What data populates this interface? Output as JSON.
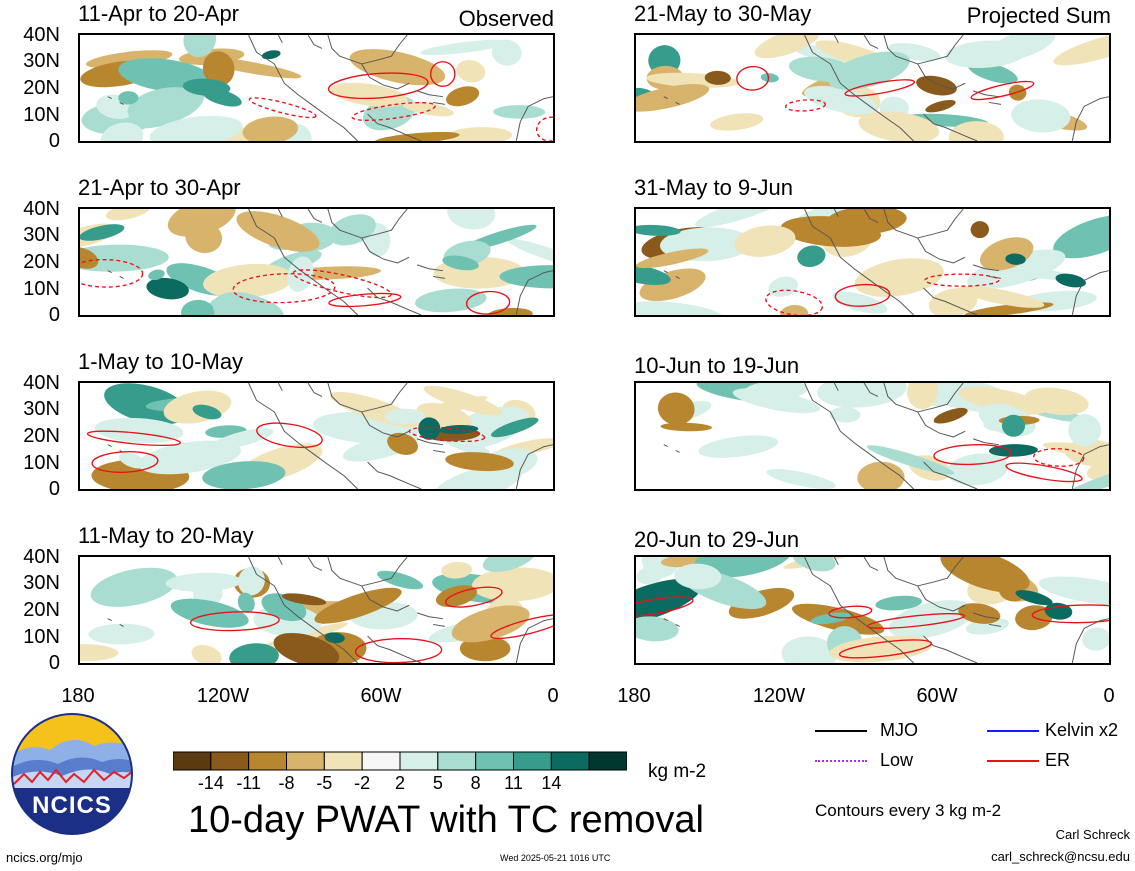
{
  "panels": [
    {
      "title": "11-Apr to 20-Apr",
      "corner": "Observed"
    },
    {
      "title": "21-May to 30-May",
      "corner": "Projected Sum"
    },
    {
      "title": "21-Apr to 30-Apr",
      "corner": ""
    },
    {
      "title": "31-May to 9-Jun",
      "corner": ""
    },
    {
      "title": "1-May to 10-May",
      "corner": ""
    },
    {
      "title": "10-Jun to 19-Jun",
      "corner": ""
    },
    {
      "title": "11-May to 20-May",
      "corner": ""
    },
    {
      "title": "20-Jun to 29-Jun",
      "corner": ""
    }
  ],
  "y_ticks": [
    "40N",
    "30N",
    "20N",
    "10N",
    "0"
  ],
  "x_ticks": [
    "180",
    "120W",
    "60W",
    "0"
  ],
  "colorbar": {
    "colors": [
      "#5c3a10",
      "#8a5a1c",
      "#b8862f",
      "#d8b36b",
      "#f1e3b8",
      "#f7f7f7",
      "#d6efe8",
      "#a9ddd1",
      "#6fc2b1",
      "#369c8c",
      "#0b6b60",
      "#00382f"
    ],
    "labels": [
      "-14",
      "-11",
      "-8",
      "-5",
      "-2",
      "2",
      "5",
      "8",
      "11",
      "14"
    ],
    "units": "kg m-2"
  },
  "legend": [
    {
      "label": "MJO",
      "color": "#000000"
    },
    {
      "label": "Kelvin x2",
      "color": "#1a1aff"
    },
    {
      "label": "Low",
      "color": "#9b30ff"
    },
    {
      "label": "ER",
      "color": "#e8121a"
    }
  ],
  "contour_note": "Contours every 3 kg m-2",
  "main_title": "10-day PWAT with TC removal",
  "logo_text": "NCICS",
  "url": "ncics.org/mjo",
  "timestamp": "Wed 2025-05-21 1016 UTC",
  "author": "Carl Schreck",
  "email": "carl_schreck@ncsu.edu"
}
